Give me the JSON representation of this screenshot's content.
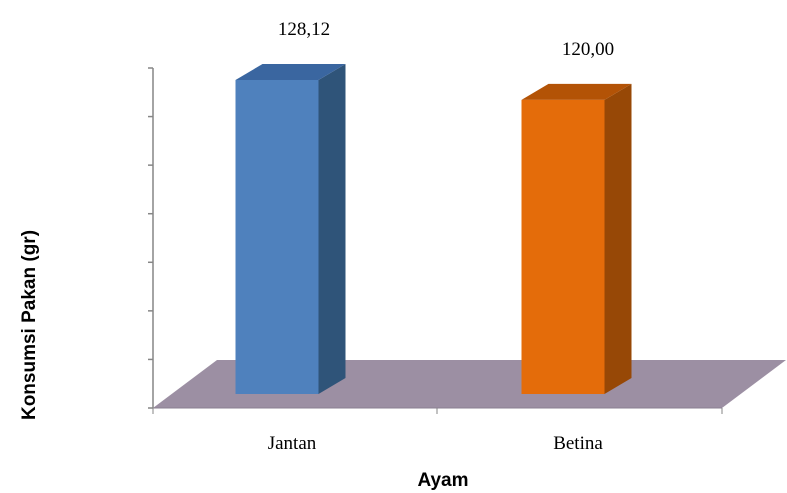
{
  "chart_data": {
    "type": "bar",
    "categories": [
      "Jantan",
      "Betina"
    ],
    "values": [
      128.12,
      120.0
    ],
    "value_labels": [
      "128,12",
      "120,00"
    ],
    "xlabel": "Ayam",
    "ylabel": "Konsumsi Pakan (gr)",
    "ylim": [
      0,
      140
    ],
    "grid": false,
    "legend": "none",
    "style": "3d-column",
    "colors": {
      "bars": [
        "#4f81bd",
        "#e46c0a"
      ],
      "bar_tops": [
        "#3a66a0",
        "#b35306"
      ],
      "bar_sides": [
        "#2f5479",
        "#974806"
      ],
      "floor": "#9c8fa3",
      "axis": "#868686"
    }
  }
}
